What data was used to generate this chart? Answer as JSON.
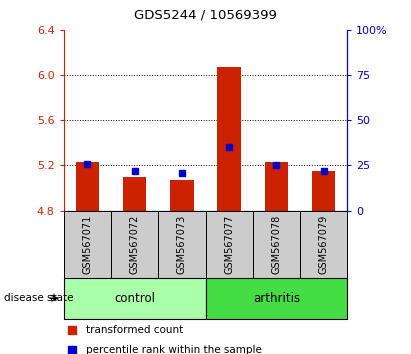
{
  "title": "GDS5244 / 10569399",
  "samples": [
    "GSM567071",
    "GSM567072",
    "GSM567073",
    "GSM567077",
    "GSM567078",
    "GSM567079"
  ],
  "bar_bottom": 4.8,
  "bar_tops": [
    5.23,
    5.1,
    5.07,
    6.07,
    5.23,
    5.15
  ],
  "percentile_ranks": [
    26,
    22,
    21,
    35,
    25,
    22
  ],
  "ylim_left": [
    4.8,
    6.4
  ],
  "ylim_right": [
    0,
    100
  ],
  "yticks_left": [
    4.8,
    5.2,
    5.6,
    6.0,
    6.4
  ],
  "yticks_right": [
    0,
    25,
    50,
    75,
    100
  ],
  "ytick_labels_right": [
    "0",
    "25",
    "50",
    "75",
    "100%"
  ],
  "bar_color": "#cc2200",
  "square_color": "#0000cc",
  "grid_color": "#000000",
  "control_label": "control",
  "arthritis_label": "arthritis",
  "control_color": "#aaffaa",
  "arthritis_color": "#44dd44",
  "disease_state_label": "disease state",
  "legend_items": [
    "transformed count",
    "percentile rank within the sample"
  ],
  "left_axis_color": "#cc2200",
  "right_axis_color": "#0000cc",
  "bar_width": 0.5,
  "sample_box_color": "#cccccc",
  "title_fontsize": 9.5,
  "tick_fontsize": 8,
  "sample_fontsize": 7,
  "legend_fontsize": 7.5,
  "disease_fontsize": 8.5
}
